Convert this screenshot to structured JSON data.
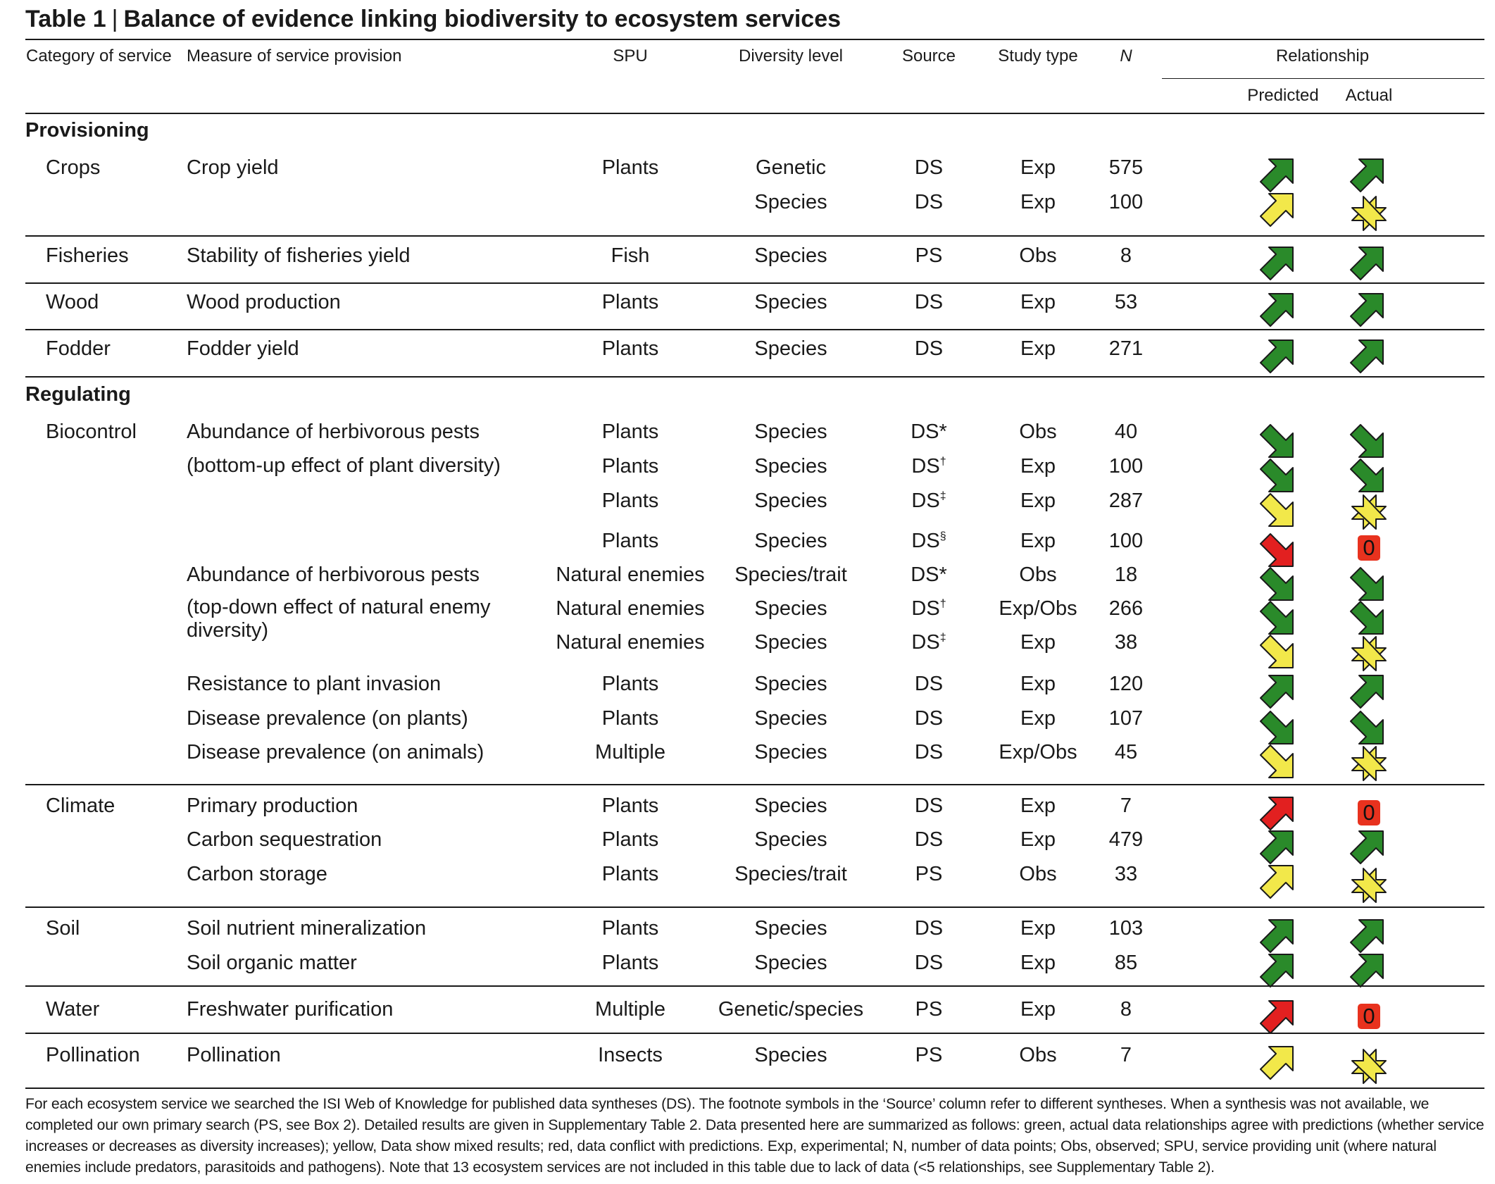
{
  "title": {
    "number": "Table 1",
    "separator": "|",
    "text": "Balance of evidence linking biodiversity to ecosystem services"
  },
  "headers": {
    "category": "Category of service",
    "measure": "Measure of service provision",
    "spu": "SPU",
    "diversity": "Diversity level",
    "source": "Source",
    "study": "Study type",
    "n": "N",
    "relationship": "Relationship",
    "predicted": "Predicted",
    "actual": "Actual"
  },
  "sections": {
    "provisioning": "Provisioning",
    "regulating": "Regulating"
  },
  "colors": {
    "up": "#2a8a2a",
    "mixed": "#f2e84a",
    "conflict": "#e22020",
    "zero_bg": "#e8321e"
  },
  "icons": {
    "up": "arrow-up-right-icon",
    "down": "arrow-down-right-icon",
    "mixed": "double-arrow-icon",
    "zero": "zero-badge"
  },
  "rows": [
    {
      "category": "Crops",
      "measure": "Crop yield",
      "spu": "Plants",
      "diversity": "Genetic",
      "source": "DS",
      "sup": "",
      "study": "Exp",
      "n": "575",
      "predicted": "green-up",
      "actual": "green-up"
    },
    {
      "category": "",
      "measure": "",
      "spu": "",
      "diversity": "Species",
      "source": "DS",
      "sup": "",
      "study": "Exp",
      "n": "100",
      "predicted": "yellow-up",
      "actual": "yellow-mixed"
    },
    {
      "category": "Fisheries",
      "measure": "Stability of fisheries yield",
      "spu": "Fish",
      "diversity": "Species",
      "source": "PS",
      "sup": "",
      "study": "Obs",
      "n": "8",
      "predicted": "green-up",
      "actual": "green-up"
    },
    {
      "category": "Wood",
      "measure": "Wood production",
      "spu": "Plants",
      "diversity": "Species",
      "source": "DS",
      "sup": "",
      "study": "Exp",
      "n": "53",
      "predicted": "green-up",
      "actual": "green-up"
    },
    {
      "category": "Fodder",
      "measure": "Fodder yield",
      "spu": "Plants",
      "diversity": "Species",
      "source": "DS",
      "sup": "",
      "study": "Exp",
      "n": "271",
      "predicted": "green-up",
      "actual": "green-up"
    },
    {
      "category": "Biocontrol",
      "measure": "Abundance of herbivorous pests",
      "spu": "Plants",
      "diversity": "Species",
      "source": "DS*",
      "sup": "",
      "study": "Obs",
      "n": "40",
      "predicted": "green-down",
      "actual": "green-down"
    },
    {
      "category": "",
      "measure": "(bottom-up effect of plant diversity)",
      "spu": "Plants",
      "diversity": "Species",
      "source": "DS",
      "sup": "†",
      "study": "Exp",
      "n": "100",
      "predicted": "green-down",
      "actual": "green-down"
    },
    {
      "category": "",
      "measure": "",
      "spu": "Plants",
      "diversity": "Species",
      "source": "DS",
      "sup": "‡",
      "study": "Exp",
      "n": "287",
      "predicted": "yellow-down",
      "actual": "yellow-mixed"
    },
    {
      "category": "",
      "measure": "",
      "spu": "Plants",
      "diversity": "Species",
      "source": "DS",
      "sup": "§",
      "study": "Exp",
      "n": "100",
      "predicted": "red-down",
      "actual": "zero"
    },
    {
      "category": "",
      "measure": "Abundance of herbivorous pests",
      "spu": "Natural enemies",
      "diversity": "Species/trait",
      "source": "DS*",
      "sup": "",
      "study": "Obs",
      "n": "18",
      "predicted": "green-down",
      "actual": "green-down"
    },
    {
      "category": "",
      "measure": "(top-down effect of natural enemy",
      "spu": "Natural enemies",
      "diversity": "Species",
      "source": "DS",
      "sup": "†",
      "study": "Exp/Obs",
      "n": "266",
      "predicted": "green-down",
      "actual": "green-down"
    },
    {
      "category": "",
      "measure": "diversity)",
      "spu": "Natural enemies",
      "diversity": "Species",
      "source": "DS",
      "sup": "‡",
      "study": "Exp",
      "n": "38",
      "predicted": "yellow-down",
      "actual": "yellow-mixed"
    },
    {
      "category": "",
      "measure": "Resistance to plant invasion",
      "spu": "Plants",
      "diversity": "Species",
      "source": "DS",
      "sup": "",
      "study": "Exp",
      "n": "120",
      "predicted": "green-up",
      "actual": "green-up"
    },
    {
      "category": "",
      "measure": "Disease prevalence (on plants)",
      "spu": "Plants",
      "diversity": "Species",
      "source": "DS",
      "sup": "",
      "study": "Exp",
      "n": "107",
      "predicted": "green-down",
      "actual": "green-down"
    },
    {
      "category": "",
      "measure": "Disease prevalence (on animals)",
      "spu": "Multiple",
      "diversity": "Species",
      "source": "DS",
      "sup": "",
      "study": "Exp/Obs",
      "n": "45",
      "predicted": "yellow-down",
      "actual": "yellow-mixed"
    },
    {
      "category": "Climate",
      "measure": "Primary production",
      "spu": "Plants",
      "diversity": "Species",
      "source": "DS",
      "sup": "",
      "study": "Exp",
      "n": "7",
      "predicted": "red-up",
      "actual": "zero"
    },
    {
      "category": "",
      "measure": "Carbon sequestration",
      "spu": "Plants",
      "diversity": "Species",
      "source": "DS",
      "sup": "",
      "study": "Exp",
      "n": "479",
      "predicted": "green-up",
      "actual": "green-up"
    },
    {
      "category": "",
      "measure": "Carbon storage",
      "spu": "Plants",
      "diversity": "Species/trait",
      "source": "PS",
      "sup": "",
      "study": "Obs",
      "n": "33",
      "predicted": "yellow-up",
      "actual": "yellow-mixed"
    },
    {
      "category": "Soil",
      "measure": "Soil nutrient mineralization",
      "spu": "Plants",
      "diversity": "Species",
      "source": "DS",
      "sup": "",
      "study": "Exp",
      "n": "103",
      "predicted": "green-up",
      "actual": "green-up"
    },
    {
      "category": "",
      "measure": "Soil organic matter",
      "spu": "Plants",
      "diversity": "Species",
      "source": "DS",
      "sup": "",
      "study": "Exp",
      "n": "85",
      "predicted": "green-up",
      "actual": "green-up"
    },
    {
      "category": "Water",
      "measure": "Freshwater purification",
      "spu": "Multiple",
      "diversity": "Genetic/species",
      "source": "PS",
      "sup": "",
      "study": "Exp",
      "n": "8",
      "predicted": "red-up",
      "actual": "zero"
    },
    {
      "category": "Pollination",
      "measure": "Pollination",
      "spu": "Insects",
      "diversity": "Species",
      "source": "PS",
      "sup": "",
      "study": "Obs",
      "n": "7",
      "predicted": "yellow-up",
      "actual": "yellow-mixed"
    }
  ],
  "zero_label": "0",
  "footnote": "For each ecosystem service we searched the ISI Web of Knowledge for published data syntheses (DS). The footnote symbols in the ‘Source’ column refer to different syntheses. When a synthesis was not available, we completed our own primary search (PS, see Box 2). Detailed results are given in Supplementary Table 2. Data presented here are summarized as follows: green, actual data relationships agree with predictions (whether service increases or decreases as diversity increases); yellow, Data show mixed results; red, data conflict with predictions. Exp, experimental; N, number of data points; Obs, observed; SPU, service providing unit (where natural enemies include predators, parasitoids and pathogens). Note that 13 ecosystem services are not included in this table due to lack of data (<5 relationships, see Supplementary Table 2)."
}
